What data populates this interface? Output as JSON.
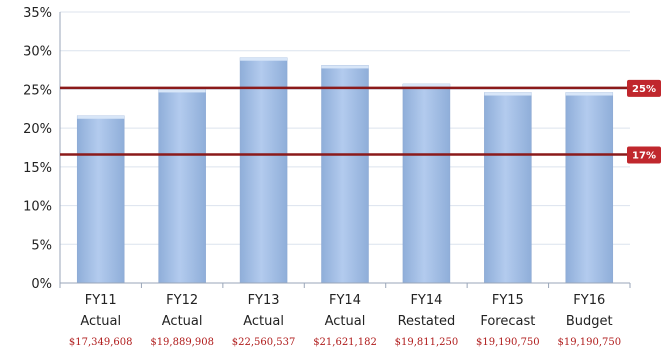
{
  "chart_data": {
    "type": "bar",
    "categories": [
      {
        "line1": "FY11",
        "line2": "Actual",
        "amount": "$17,349,608"
      },
      {
        "line1": "FY12",
        "line2": "Actual",
        "amount": "$19,889,908"
      },
      {
        "line1": "FY13",
        "line2": "Actual",
        "amount": "$22,560,537"
      },
      {
        "line1": "FY14",
        "line2": "Actual",
        "amount": "$21,621,182"
      },
      {
        "line1": "FY14",
        "line2": "Restated",
        "amount": "$19,811,250"
      },
      {
        "line1": "FY15",
        "line2": "Forecast",
        "amount": "$19,190,750"
      },
      {
        "line1": "FY16",
        "line2": "Budget",
        "amount": "$19,190,750"
      }
    ],
    "values": [
      21.6,
      25.0,
      29.1,
      28.1,
      25.7,
      24.6,
      24.6
    ],
    "ylim": [
      0,
      35
    ],
    "yticks": [
      "0%",
      "5%",
      "10%",
      "15%",
      "20%",
      "25%",
      "30%",
      "35%"
    ],
    "grid": true,
    "reference_lines": [
      {
        "value": 25.2,
        "label": "25%"
      },
      {
        "value": 16.6,
        "label": "17%"
      }
    ],
    "colors": {
      "bar": "#a4bfe6",
      "bar_edge": "#8aa6d0",
      "reference": "#8b1a1a",
      "label_bg": "#c0272d",
      "grid": "#dce3ee"
    }
  }
}
